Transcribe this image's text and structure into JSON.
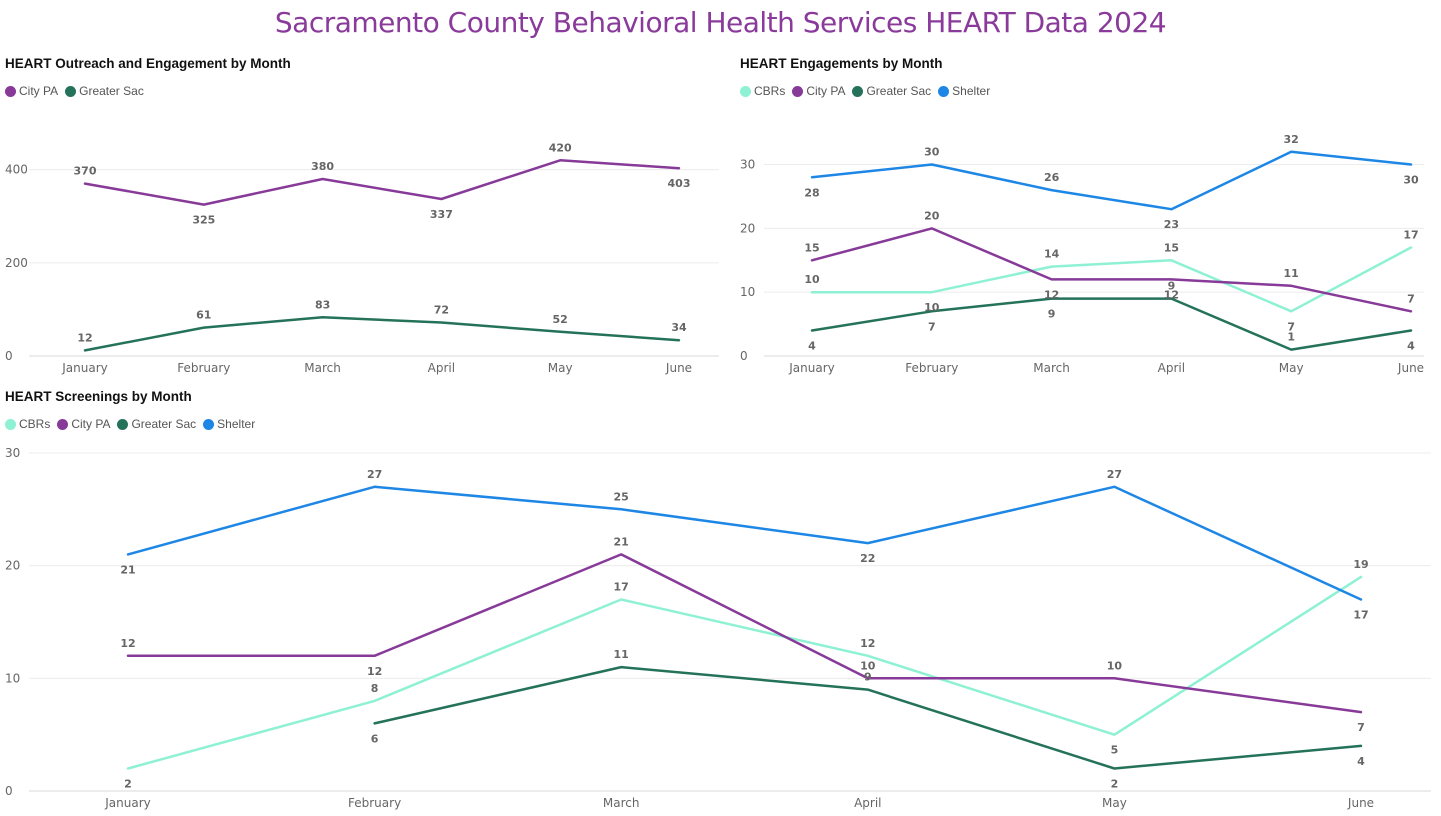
{
  "page": {
    "title": "Sacramento County Behavioral Health Services HEART Data 2024"
  },
  "colors": {
    "CBRs": "#8ef1d3",
    "City PA": "#873a98",
    "Greater Sac": "#24725a",
    "Shelter": "#1e87e5"
  },
  "chart_data": [
    {
      "id": "outreach",
      "type": "line",
      "title": "HEART Outreach and Engagement by Month",
      "categories": [
        "January",
        "February",
        "March",
        "April",
        "May",
        "June"
      ],
      "ylim": [
        0,
        440
      ],
      "yticks": [
        0,
        200,
        400
      ],
      "grid": true,
      "legend": "top-left",
      "series": [
        {
          "name": "City PA",
          "values": [
            370,
            325,
            380,
            337,
            420,
            403
          ],
          "labelpos": [
            "a",
            "b",
            "a",
            "b",
            "a",
            "b"
          ]
        },
        {
          "name": "Greater Sac",
          "values": [
            12,
            61,
            83,
            72,
            52,
            34
          ],
          "labelpos": [
            "a",
            "a",
            "a",
            "a",
            "a",
            "a"
          ]
        }
      ]
    },
    {
      "id": "engagements",
      "type": "line",
      "title": "HEART Engagements by Month",
      "categories": [
        "January",
        "February",
        "March",
        "April",
        "May",
        "June"
      ],
      "ylim": [
        0,
        34
      ],
      "yticks": [
        0,
        10,
        20,
        30
      ],
      "grid": true,
      "legend": "top-left",
      "series": [
        {
          "name": "CBRs",
          "values": [
            10,
            10,
            14,
            15,
            7,
            17
          ],
          "labelpos": [
            "a",
            "b",
            "a",
            "a",
            "b",
            "a"
          ]
        },
        {
          "name": "City PA",
          "values": [
            15,
            20,
            12,
            12,
            11,
            7
          ],
          "labelpos": [
            "a",
            "a",
            "b",
            "b",
            "a",
            "a"
          ]
        },
        {
          "name": "Greater Sac",
          "values": [
            4,
            7,
            9,
            9,
            1,
            4
          ],
          "labelpos": [
            "b",
            "b",
            "b",
            "a",
            "a",
            "b"
          ]
        },
        {
          "name": "Shelter",
          "values": [
            28,
            30,
            26,
            23,
            32,
            30
          ],
          "labelpos": [
            "b",
            "a",
            "a",
            "b",
            "a",
            "b"
          ]
        }
      ]
    },
    {
      "id": "screenings",
      "type": "line",
      "title": "HEART Screenings by Month",
      "categories": [
        "January",
        "February",
        "March",
        "April",
        "May",
        "June"
      ],
      "ylim": [
        0,
        30
      ],
      "yticks": [
        0,
        10,
        20,
        30
      ],
      "grid": true,
      "legend": "top-left",
      "series": [
        {
          "name": "CBRs",
          "values": [
            2,
            8,
            17,
            12,
            5,
            19
          ],
          "labelpos": [
            "b",
            "a",
            "a",
            "a",
            "b",
            "a"
          ]
        },
        {
          "name": "City PA",
          "values": [
            12,
            12,
            21,
            10,
            10,
            7
          ],
          "labelpos": [
            "a",
            "b",
            "a",
            "a",
            "a",
            "b"
          ]
        },
        {
          "name": "Greater Sac",
          "values": [
            null,
            6,
            11,
            9,
            2,
            4
          ],
          "labelpos": [
            null,
            "b",
            "a",
            "a",
            "b",
            "b"
          ]
        },
        {
          "name": "Shelter",
          "values": [
            21,
            27,
            25,
            22,
            27,
            17
          ],
          "labelpos": [
            "b",
            "a",
            "a",
            "b",
            "a",
            "b"
          ]
        }
      ]
    }
  ]
}
